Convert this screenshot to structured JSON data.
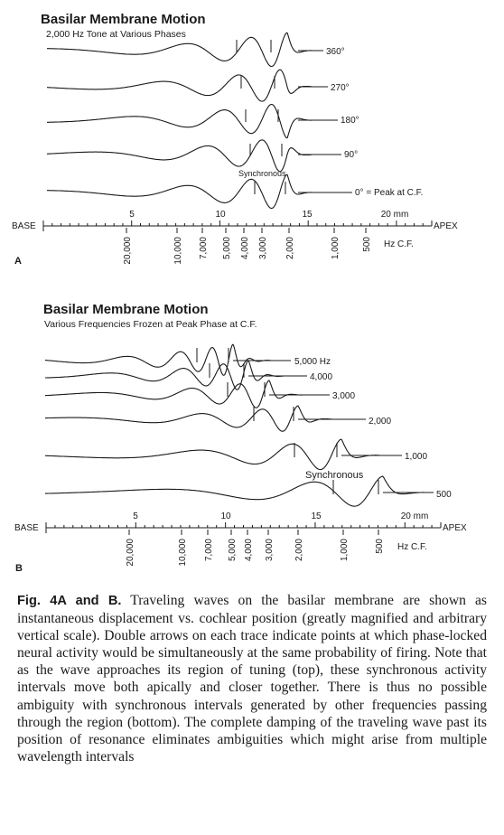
{
  "figA": {
    "title": "Basilar Membrane Motion",
    "subtitle": "2,000 Hz Tone at Various Phases",
    "panel_label": "A",
    "traces": [
      {
        "label": "360°",
        "phase": 360
      },
      {
        "label": "270°",
        "phase": 270
      },
      {
        "label": "180°",
        "phase": 180
      },
      {
        "label": "90°",
        "phase": 90
      },
      {
        "label": "0° = Peak at C.F.",
        "phase": 0,
        "annotation": "Synchronous"
      }
    ]
  },
  "figB": {
    "title": "Basilar Membrane Motion",
    "subtitle": "Various Frequencies Frozen at Peak Phase at C.F.",
    "panel_label": "B",
    "traces": [
      {
        "label": "5,000 Hz",
        "freq": 5000
      },
      {
        "label": "4,000",
        "freq": 4000
      },
      {
        "label": "3,000",
        "freq": 3000
      },
      {
        "label": "2,000",
        "freq": 2000
      },
      {
        "label": "1,000",
        "freq": 1000
      },
      {
        "label": "500",
        "freq": 500,
        "annotation": "Synchronous"
      }
    ]
  },
  "axis": {
    "base_label": "BASE",
    "apex_label": "APEX",
    "mm_ticks": [
      "5",
      "10",
      "15",
      "20 mm"
    ],
    "hz_label": "Hz C.F.",
    "freq_labels": [
      "20,000",
      "10,000",
      "7,000",
      "5,000",
      "4,000",
      "3,000",
      "2,000",
      "1,000",
      "500"
    ]
  },
  "caption": {
    "lead": "Fig. 4A and B.",
    "text": "Traveling waves on the basilar membrane are shown as instantaneous displacement vs. cochlear position (greatly magnified and arbitrary vertical scale). Double arrows on each trace indicate points at which phase-locked neural activity would be simultaneously at the same probability of firing. Note that as the wave approaches its region of tuning (top), these synchronous activity intervals move both apically and closer together. There is thus no possible ambiguity with synchronous intervals generated by other frequencies passing through the region (bottom). The complete damping of the traveling wave past its position of resonance eliminates ambiguities which might arise from multiple wavelength intervals"
  }
}
